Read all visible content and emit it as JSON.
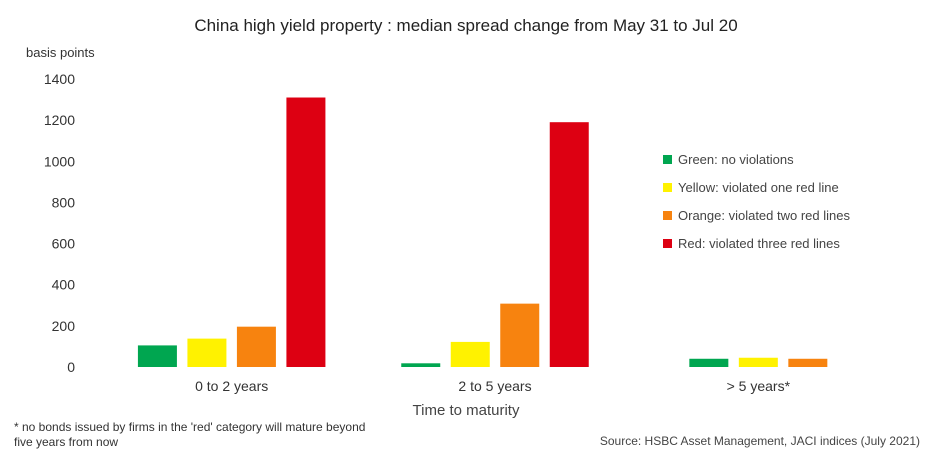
{
  "chart_data": {
    "type": "bar",
    "title": "China high yield property : median spread change from May 31 to Jul 20",
    "ylabel": "basis points",
    "xlabel": "Time to maturity",
    "categories": [
      "0 to 2 years",
      "2 to 5 years",
      "> 5 years*"
    ],
    "ylim": [
      0,
      1400
    ],
    "yticks": [
      0,
      200,
      400,
      600,
      800,
      1000,
      1200,
      1400
    ],
    "grid": false,
    "legend_position": "right",
    "series": [
      {
        "name": "Green: no violations",
        "color": "#00a650",
        "values": [
          105,
          18,
          40
        ]
      },
      {
        "name": "Yellow: violated one red line",
        "color": "#fff200",
        "values": [
          138,
          122,
          45
        ]
      },
      {
        "name": "Orange: violated two red lines",
        "color": "#f7830f",
        "values": [
          196,
          308,
          40
        ]
      },
      {
        "name": "Red: violated three red lines",
        "color": "#dd0012",
        "values": [
          1310,
          1190,
          null
        ]
      }
    ]
  },
  "footnote": "* no bonds issued by firms in the 'red' category will mature beyond five years from now",
  "source": "Source: HSBC Asset Management, JACI indices (July 2021)"
}
